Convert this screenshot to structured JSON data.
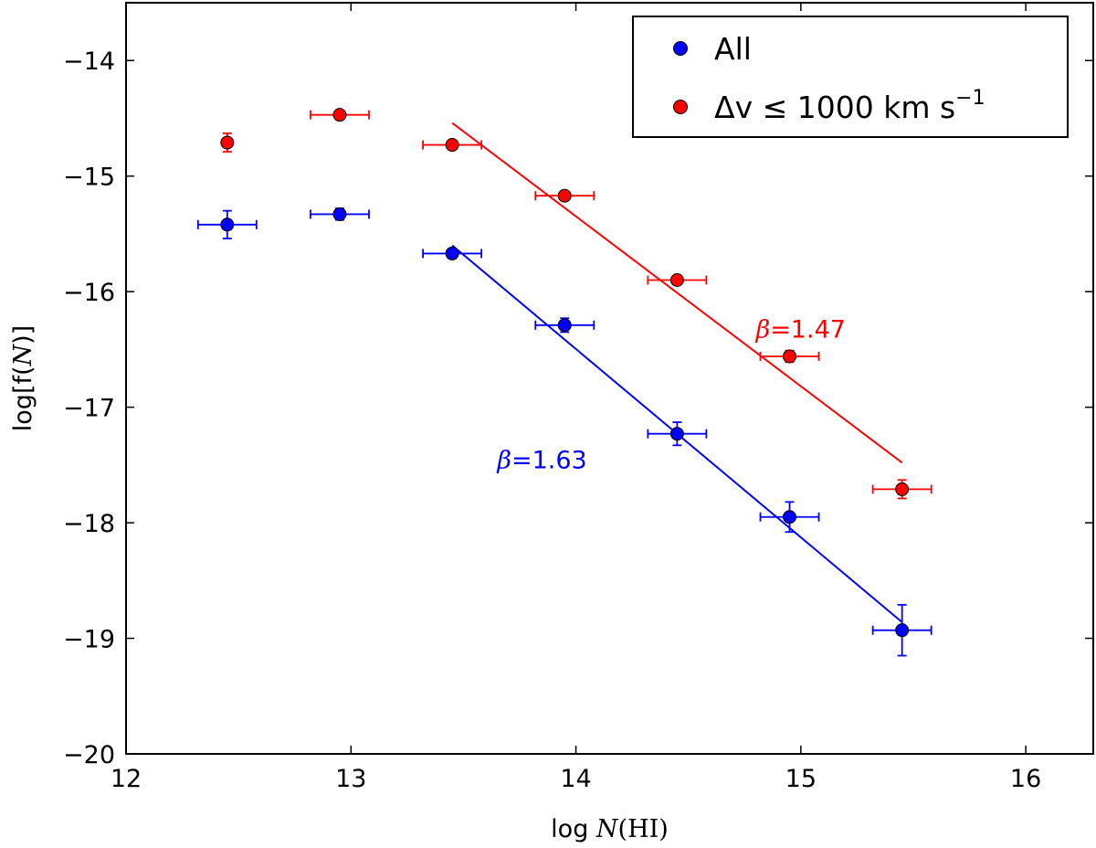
{
  "chart_data": {
    "type": "scatter",
    "title": "",
    "xlabel": {
      "prefix": "log ",
      "var": "N",
      "suffix": "(HI)"
    },
    "ylabel": {
      "prefix": "log[f(",
      "var": "N",
      "suffix": ")]"
    },
    "xlim": [
      12,
      16.3
    ],
    "ylim": [
      -20,
      -13.5
    ],
    "xticks": [
      12,
      13,
      14,
      15,
      16
    ],
    "yticks": [
      -20,
      -19,
      -18,
      -17,
      -16,
      -15,
      -14
    ],
    "ytick_labels": [
      "−20",
      "−19",
      "−18",
      "−17",
      "−16",
      "−15",
      "−14"
    ],
    "grid": false,
    "legend_position": "top-right",
    "series": [
      {
        "name": "All",
        "color": "#0000ff",
        "x": [
          12.45,
          12.95,
          13.45,
          13.95,
          14.45,
          14.95,
          15.45
        ],
        "y": [
          -15.42,
          -15.33,
          -15.67,
          -16.29,
          -17.23,
          -17.95,
          -18.93
        ],
        "xerr": [
          0.13,
          0.13,
          0.13,
          0.13,
          0.13,
          0.13,
          0.13
        ],
        "yerr": [
          0.12,
          0.05,
          0.04,
          0.06,
          0.1,
          0.13,
          0.22
        ],
        "fit": {
          "x": [
            13.45,
            15.45
          ],
          "y": [
            -15.6,
            -18.86
          ],
          "label_prefix": "β",
          "label_value": "=1.63",
          "label_x": 13.65,
          "label_y": -17.45
        }
      },
      {
        "name": "Δv ≤ 1000 km s",
        "name_superscript": "−1",
        "color": "#ff0000",
        "x": [
          12.45,
          12.95,
          13.45,
          13.95,
          14.45,
          14.95,
          15.45
        ],
        "y": [
          -14.71,
          -14.47,
          -14.73,
          -15.17,
          -15.9,
          -16.56,
          -17.71
        ],
        "xerr": [
          0,
          0.13,
          0.13,
          0.13,
          0.13,
          0.13,
          0.13
        ],
        "yerr": [
          0.08,
          0.02,
          0.03,
          0.03,
          0.03,
          0.05,
          0.08
        ],
        "fit": {
          "x": [
            13.45,
            15.45
          ],
          "y": [
            -14.54,
            -17.48
          ],
          "label_prefix": "β",
          "label_value": "=1.47",
          "label_x": 14.8,
          "label_y": -16.32
        }
      }
    ]
  }
}
